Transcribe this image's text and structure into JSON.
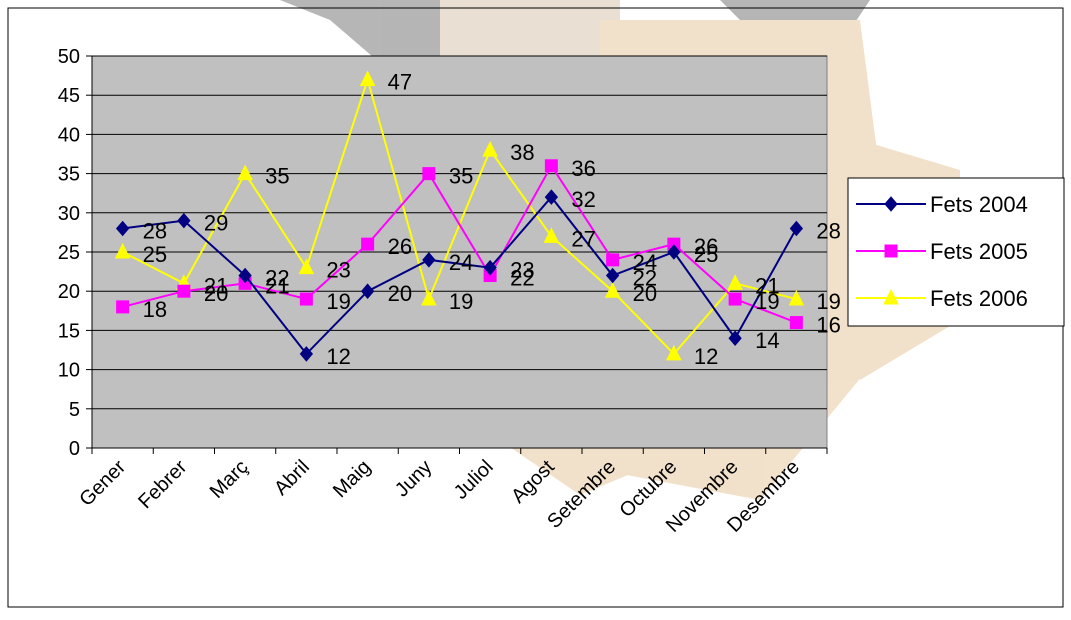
{
  "chart_data": {
    "type": "line",
    "title": "",
    "xlabel": "",
    "ylabel": "",
    "categories": [
      "Gener",
      "Febrer",
      "Març",
      "Abril",
      "Maig",
      "Juny",
      "Juliol",
      "Agost",
      "Setembre",
      "Octubre",
      "Novembre",
      "Desembre"
    ],
    "ylim": [
      0,
      50
    ],
    "yticks": [
      0,
      5,
      10,
      15,
      20,
      25,
      30,
      35,
      40,
      45,
      50
    ],
    "grid": "horizontal",
    "legend_position": "right",
    "plot_background": "#c0c0c0",
    "series": [
      {
        "name": "Fets 2004",
        "color": "#000080",
        "marker": "diamond",
        "values": [
          28,
          29,
          22,
          12,
          20,
          24,
          23,
          32,
          22,
          25,
          14,
          28
        ]
      },
      {
        "name": "Fets 2005",
        "color": "#ff00ff",
        "marker": "square",
        "values": [
          18,
          20,
          21,
          19,
          26,
          35,
          22,
          36,
          24,
          26,
          19,
          16
        ]
      },
      {
        "name": "Fets 2006",
        "color": "#ffff00",
        "marker": "triangle",
        "values": [
          25,
          21,
          35,
          23,
          47,
          19,
          38,
          27,
          20,
          12,
          21,
          19
        ]
      }
    ]
  }
}
